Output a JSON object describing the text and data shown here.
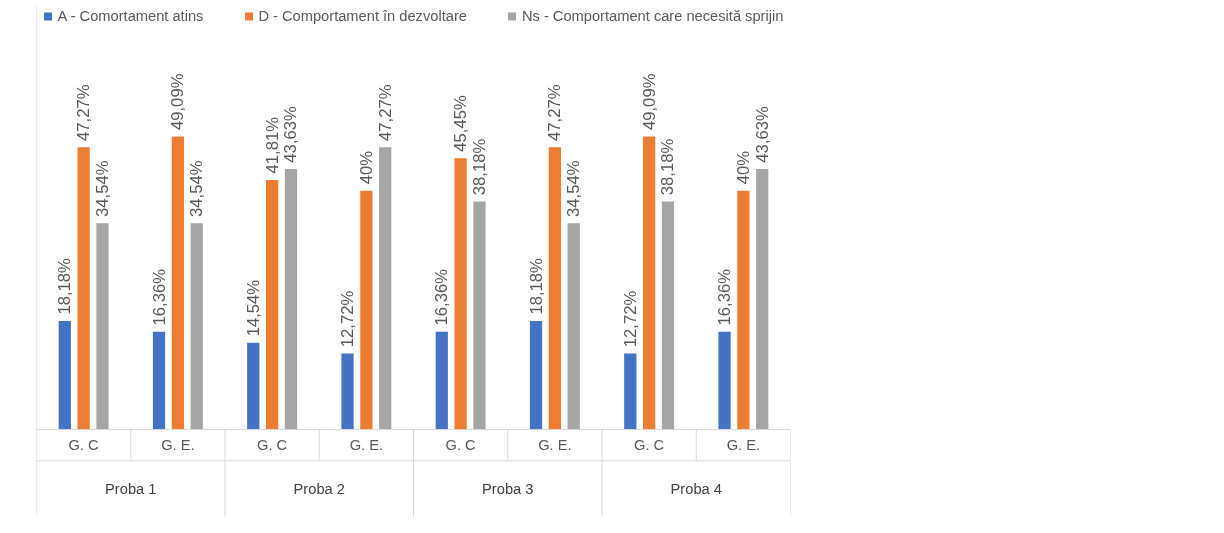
{
  "chart_data": {
    "type": "bar",
    "categories": [
      "G. C",
      "G. E.",
      "G. C",
      "G. E.",
      "G. C",
      "G. E.",
      "G. C",
      "G. E."
    ],
    "series": [
      {
        "name": "A - Comortament atins",
        "color": "#4472c4",
        "values": [
          18.18,
          16.36,
          14.54,
          12.72,
          16.36,
          18.18,
          12.72,
          16.36
        ],
        "value_labels": [
          "18,18%",
          "16,36%",
          "14,54%",
          "12,72%",
          "16,36%",
          "18,18%",
          "12,72%",
          "16,36%"
        ]
      },
      {
        "name": "D - Comportament în dezvoltare",
        "color": "#ed7d31",
        "values": [
          47.27,
          49.09,
          41.81,
          40,
          45.45,
          47.27,
          49.09,
          40
        ],
        "value_labels": [
          "47,27%",
          "49,09%",
          "41,81%",
          "40%",
          "45,45%",
          "47,27%",
          "49,09%",
          "40%"
        ]
      },
      {
        "name": "Ns - Comportament care necesită sprijin",
        "color": "#a5a5a5",
        "values": [
          34.54,
          34.54,
          43.63,
          47.27,
          38.18,
          34.54,
          38.18,
          43.63
        ],
        "value_labels": [
          "34,54%",
          "34,54%",
          "43,63%",
          "47,27%",
          "38,18%",
          "34,54%",
          "38,18%",
          "43,63%"
        ]
      }
    ],
    "annotations": [
      "Proba 1",
      "Proba 2",
      "Proba 3",
      "Proba 4"
    ],
    "legend": "top",
    "grid": false
  }
}
